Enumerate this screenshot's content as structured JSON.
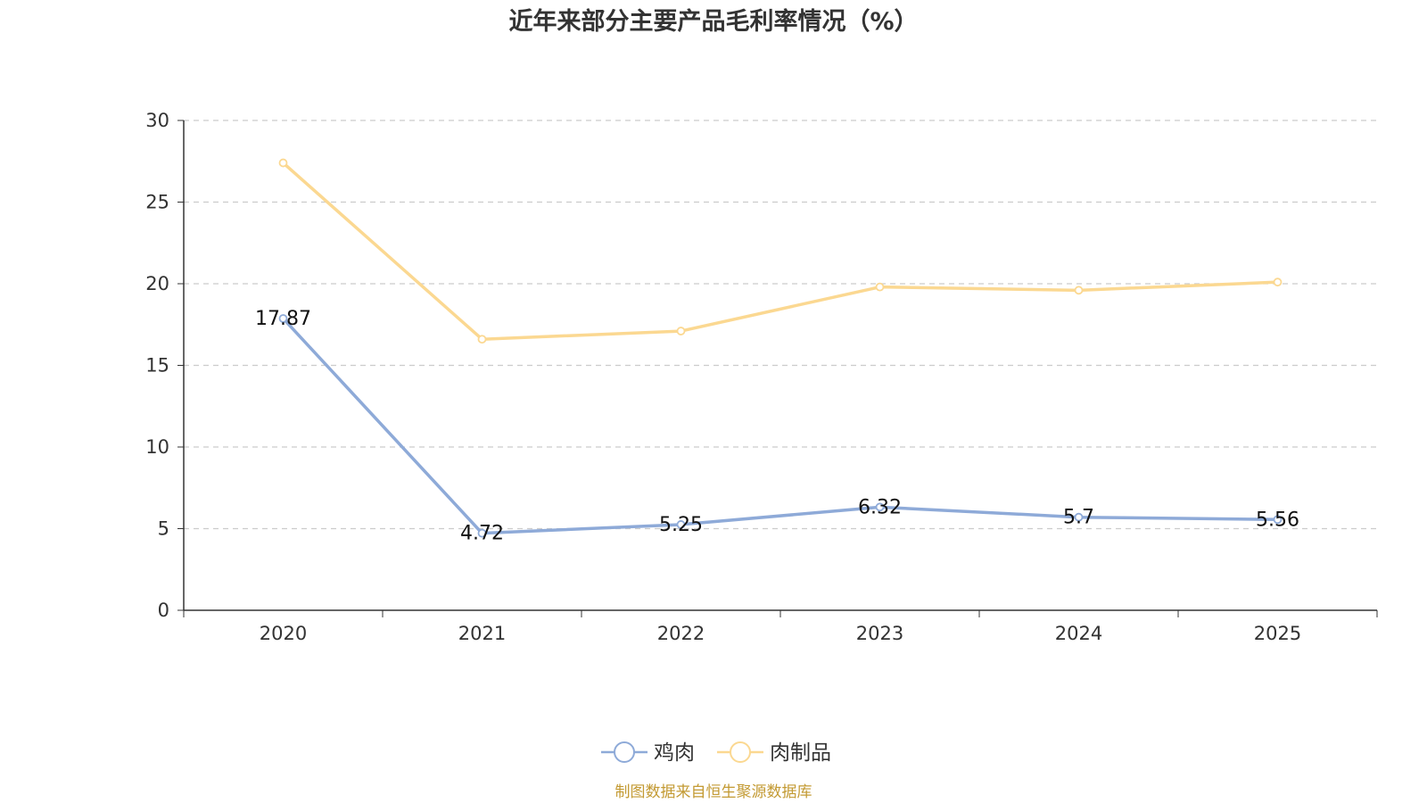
{
  "chart_data": {
    "type": "line",
    "title": "近年来部分主要产品毛利率情况（%）",
    "xlabel": "",
    "ylabel": "",
    "categories": [
      "2020",
      "2021",
      "2022",
      "2023",
      "2024",
      "2025"
    ],
    "ylim": [
      0,
      30
    ],
    "yticks": [
      "0",
      "5",
      "10",
      "15",
      "20",
      "25",
      "30"
    ],
    "grid": true,
    "legend_position": "bottom-center",
    "series": [
      {
        "name": "鸡肉",
        "color": "#8eaad8",
        "values": [
          17.87,
          4.72,
          5.25,
          6.32,
          5.7,
          5.56
        ],
        "labels": [
          "17.87",
          "4.72",
          "5.25",
          "6.32",
          "5.7",
          "5.56"
        ]
      },
      {
        "name": "肉制品",
        "color": "#fbd891",
        "values": [
          27.4,
          16.6,
          17.1,
          19.8,
          19.6,
          20.1
        ]
      }
    ]
  },
  "source": {
    "text": "制图数据来自恒生聚源数据库",
    "color": "#c39a33"
  }
}
